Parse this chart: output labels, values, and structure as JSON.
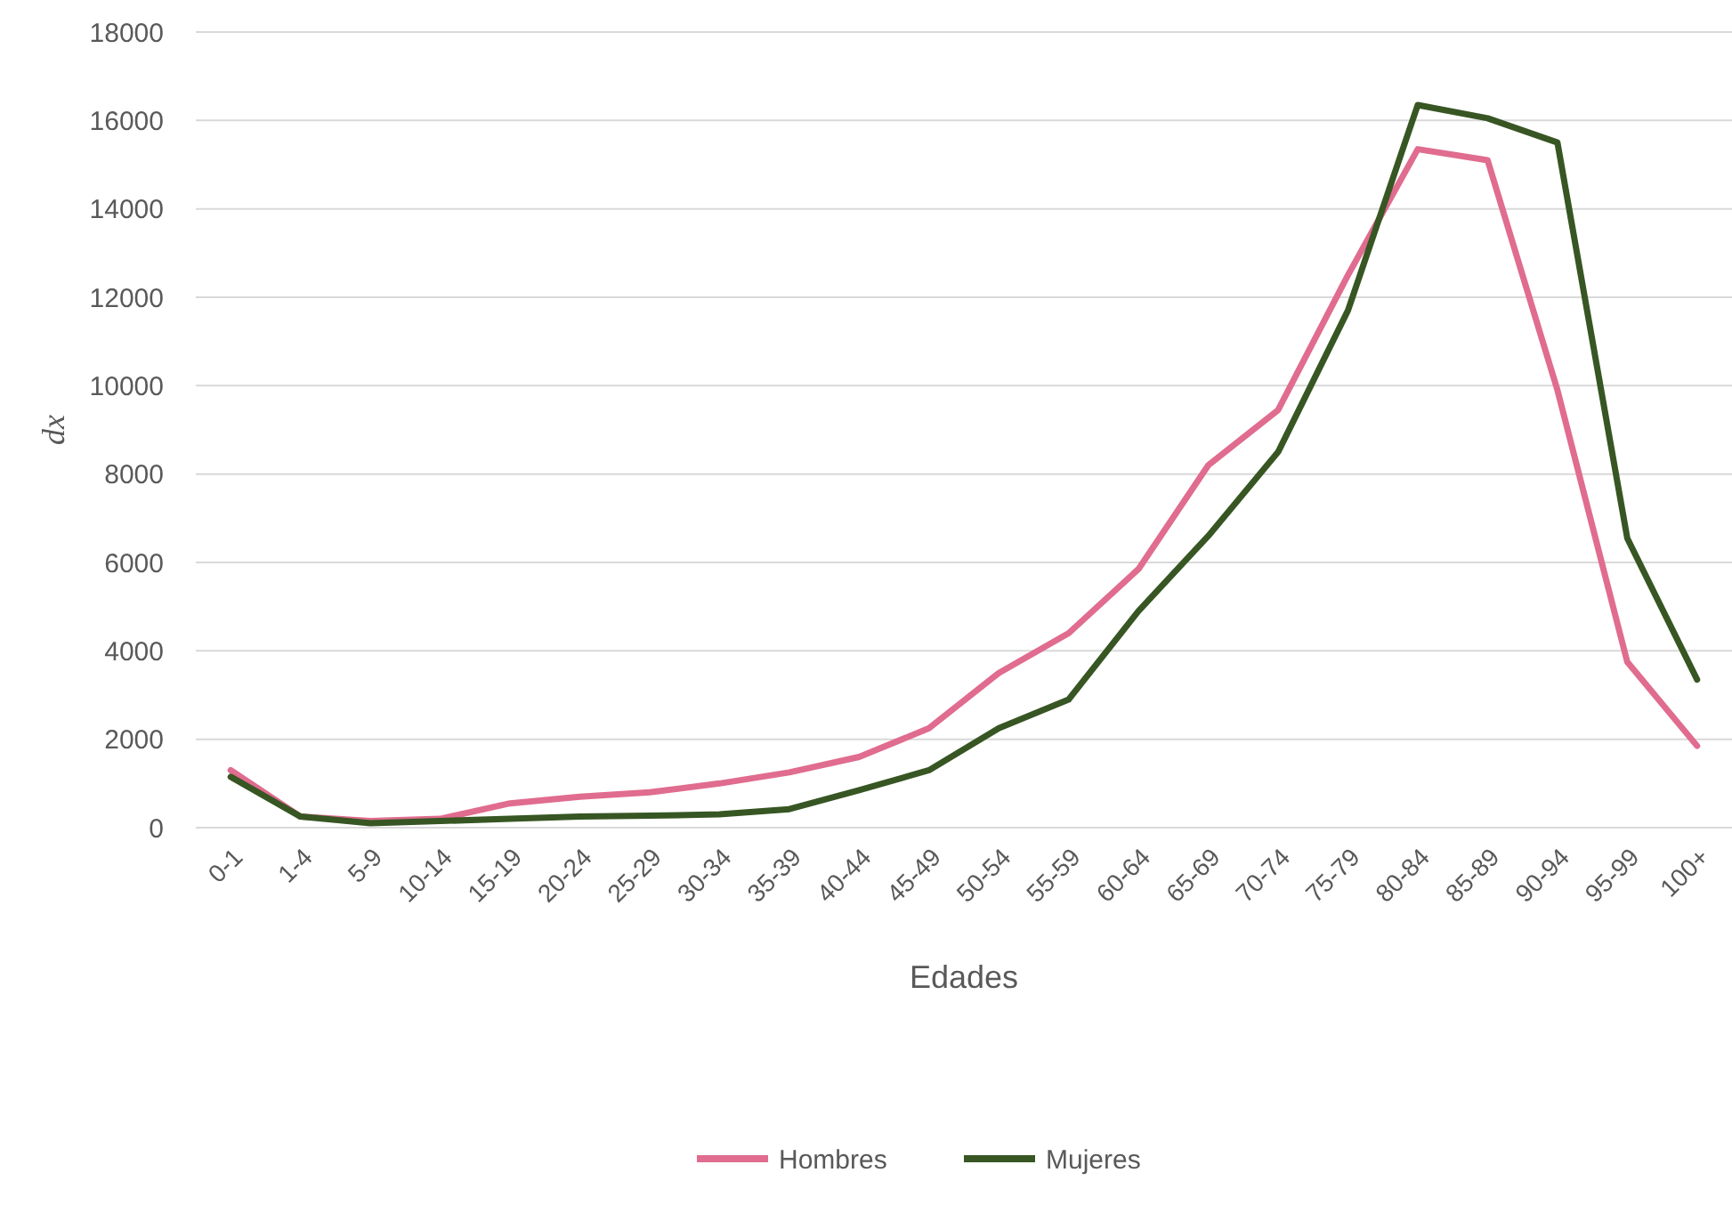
{
  "chart_data": {
    "type": "line",
    "xlabel": "Edades",
    "ylabel": "dx",
    "categories": [
      "0-1",
      "1-4",
      "5-9",
      "10-14",
      "15-19",
      "20-24",
      "25-29",
      "30-34",
      "35-39",
      "40-44",
      "45-49",
      "50-54",
      "55-59",
      "60-64",
      "65-69",
      "70-74",
      "75-79",
      "80-84",
      "85-89",
      "90-94",
      "95-99",
      "100+"
    ],
    "series": [
      {
        "name": "Hombres",
        "color": "#e06c8f",
        "values": [
          1300,
          250,
          150,
          200,
          550,
          700,
          800,
          1000,
          1250,
          1600,
          2250,
          3500,
          4400,
          5850,
          8200,
          9450,
          12500,
          15350,
          15100,
          9900,
          3750,
          1850
        ]
      },
      {
        "name": "Mujeres",
        "color": "#375623",
        "values": [
          1150,
          250,
          100,
          150,
          200,
          250,
          270,
          300,
          420,
          850,
          1300,
          2250,
          2900,
          4900,
          6600,
          8500,
          11700,
          16350,
          16050,
          15500,
          6550,
          3350
        ]
      }
    ],
    "ylim": [
      0,
      18000
    ],
    "yticks": [
      0,
      2000,
      4000,
      6000,
      8000,
      10000,
      12000,
      14000,
      16000,
      18000
    ],
    "grid": "y",
    "legend": "bottom",
    "marker": "none",
    "line_style": "solid"
  }
}
